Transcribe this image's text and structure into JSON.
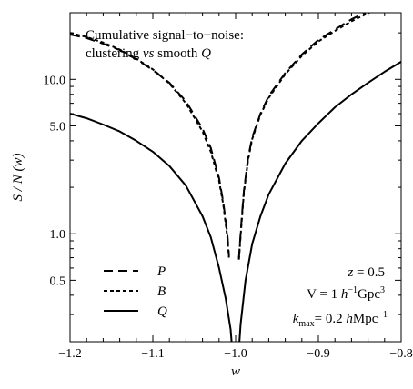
{
  "chart_data": {
    "type": "line",
    "title": "Cumulative signal−to−noise:",
    "subtitle_parts": [
      "clustering ",
      "vs",
      " smooth ",
      "Q"
    ],
    "xlabel": "w",
    "ylabel": "S / N (w)",
    "xlim": [
      -1.2,
      -0.8
    ],
    "ylim": [
      0.2,
      27
    ],
    "yscale": "log",
    "x_ticks": [
      -1.2,
      -1.1,
      -1.0,
      -0.9,
      -0.8
    ],
    "x_tick_labels": [
      "−1.2",
      "−1.1",
      "−1.0",
      "−0.9",
      "−0.8"
    ],
    "y_ticks": [
      0.5,
      1.0,
      5.0,
      10.0
    ],
    "y_tick_labels": [
      "0.5",
      "1.0",
      "5.0",
      "10.0"
    ],
    "legend": {
      "position": "lower-left",
      "entries": [
        {
          "name": "P",
          "style": "long-dash"
        },
        {
          "name": "B",
          "style": "short-dash"
        },
        {
          "name": "Q",
          "style": "solid"
        }
      ]
    },
    "annotations": {
      "z_lhs": "z",
      "z_rhs": " = 0.5",
      "vol_pre": "V = 1 ",
      "vol_h": "h",
      "vol_hexp": "−1",
      "vol_unit": "Gpc",
      "vol_exp": "3",
      "k_main": "k",
      "k_sub": "max",
      "k_eq": "= 0.2 ",
      "k_h": "h",
      "k_unit": "Mpc",
      "k_exp": "−1"
    },
    "series": [
      {
        "name": "P",
        "style": "long-dash",
        "x": [
          -1.2,
          -1.18,
          -1.16,
          -1.14,
          -1.12,
          -1.1,
          -1.08,
          -1.06,
          -1.04,
          -1.03,
          -1.02,
          -1.015,
          -1.01,
          -1.008,
          null,
          -0.996,
          -0.993,
          -0.99,
          -0.985,
          -0.98,
          -0.97,
          -0.96,
          -0.94,
          -0.92,
          -0.9,
          -0.88,
          -0.86,
          -0.84,
          -0.82,
          -0.8
        ],
        "y": [
          19.5,
          18.5,
          17.0,
          15.5,
          13.5,
          11.5,
          9.5,
          7.2,
          4.8,
          3.6,
          2.3,
          1.6,
          1.0,
          0.72,
          null,
          0.69,
          1.2,
          1.9,
          3.1,
          4.2,
          6.0,
          7.8,
          11.0,
          14.5,
          18.0,
          21.0,
          24.5,
          27.5,
          31.0,
          34.5
        ]
      },
      {
        "name": "B",
        "style": "short-dash",
        "x": [
          -1.2,
          -1.18,
          -1.16,
          -1.14,
          -1.12,
          -1.1,
          -1.08,
          -1.06,
          -1.04,
          -1.03,
          -1.02,
          -1.015,
          -1.01,
          -1.008,
          null,
          -0.996,
          -0.993,
          -0.99,
          -0.985,
          -0.98,
          -0.97,
          -0.96,
          -0.94,
          -0.92,
          -0.9,
          -0.88,
          -0.86,
          -0.84,
          -0.82,
          -0.8
        ],
        "y": [
          20.0,
          18.8,
          17.3,
          15.6,
          13.6,
          11.6,
          9.4,
          7.0,
          4.6,
          3.4,
          2.2,
          1.55,
          0.95,
          0.7,
          null,
          0.68,
          1.15,
          1.85,
          3.0,
          4.1,
          5.9,
          7.6,
          10.8,
          14.2,
          17.6,
          20.6,
          23.8,
          26.8,
          30.0,
          33.0
        ]
      },
      {
        "name": "Q",
        "style": "solid",
        "x": [
          -1.2,
          -1.18,
          -1.16,
          -1.14,
          -1.12,
          -1.1,
          -1.08,
          -1.06,
          -1.04,
          -1.03,
          -1.02,
          -1.012,
          -1.006,
          -1.003,
          null,
          -0.997,
          -0.994,
          -0.988,
          -0.98,
          -0.97,
          -0.96,
          -0.94,
          -0.92,
          -0.9,
          -0.88,
          -0.86,
          -0.84,
          -0.82,
          -0.8
        ],
        "y": [
          6.0,
          5.6,
          5.1,
          4.6,
          4.0,
          3.4,
          2.75,
          2.05,
          1.3,
          0.95,
          0.6,
          0.38,
          0.24,
          0.15,
          null,
          0.15,
          0.26,
          0.5,
          0.86,
          1.3,
          1.8,
          2.85,
          4.0,
          5.2,
          6.6,
          8.0,
          9.5,
          11.2,
          13.0
        ]
      }
    ]
  }
}
